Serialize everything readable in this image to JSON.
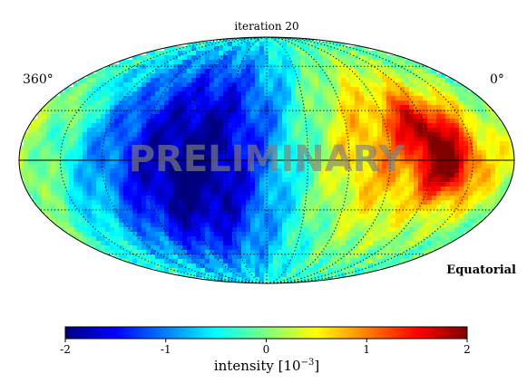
{
  "chart_data": {
    "type": "heatmap",
    "title": "iteration 20",
    "projection": "mollweide",
    "coordinate_system": "Equatorial",
    "watermark": "PRELIMINARY",
    "longitude_labels": [
      "360°",
      "0°"
    ],
    "colorbar": {
      "label": "intensity [10",
      "label_exponent": "−3",
      "label_suffix": "]",
      "range": [
        -2,
        2
      ],
      "ticks": [
        -2,
        -1,
        0,
        1,
        2
      ],
      "tick_labels": [
        "-2",
        "-1",
        "0",
        "1",
        "2"
      ],
      "colormap": "jet"
    },
    "features": [
      {
        "lon": 240,
        "lat": 0,
        "sigma": 55,
        "value": -1.7
      },
      {
        "lon": 230,
        "lat": -25,
        "sigma": 30,
        "value": -0.4
      },
      {
        "lon": 200,
        "lat": 40,
        "sigma": 30,
        "value": -0.3
      },
      {
        "lon": 95,
        "lat": 10,
        "sigma": 40,
        "value": 0.9
      },
      {
        "lon": 65,
        "lat": 20,
        "sigma": 12,
        "value": 0.9
      },
      {
        "lon": 48,
        "lat": -5,
        "sigma": 14,
        "value": 1.3
      },
      {
        "lon": 40,
        "lat": 15,
        "sigma": 20,
        "value": 0.5
      },
      {
        "lon": 330,
        "lat": 30,
        "sigma": 8,
        "value": 0.5
      },
      {
        "lon": 355,
        "lat": 0,
        "sigma": 20,
        "value": 0.3
      },
      {
        "lon": 20,
        "lat": -25,
        "sigma": 15,
        "value": 0.2
      }
    ]
  }
}
